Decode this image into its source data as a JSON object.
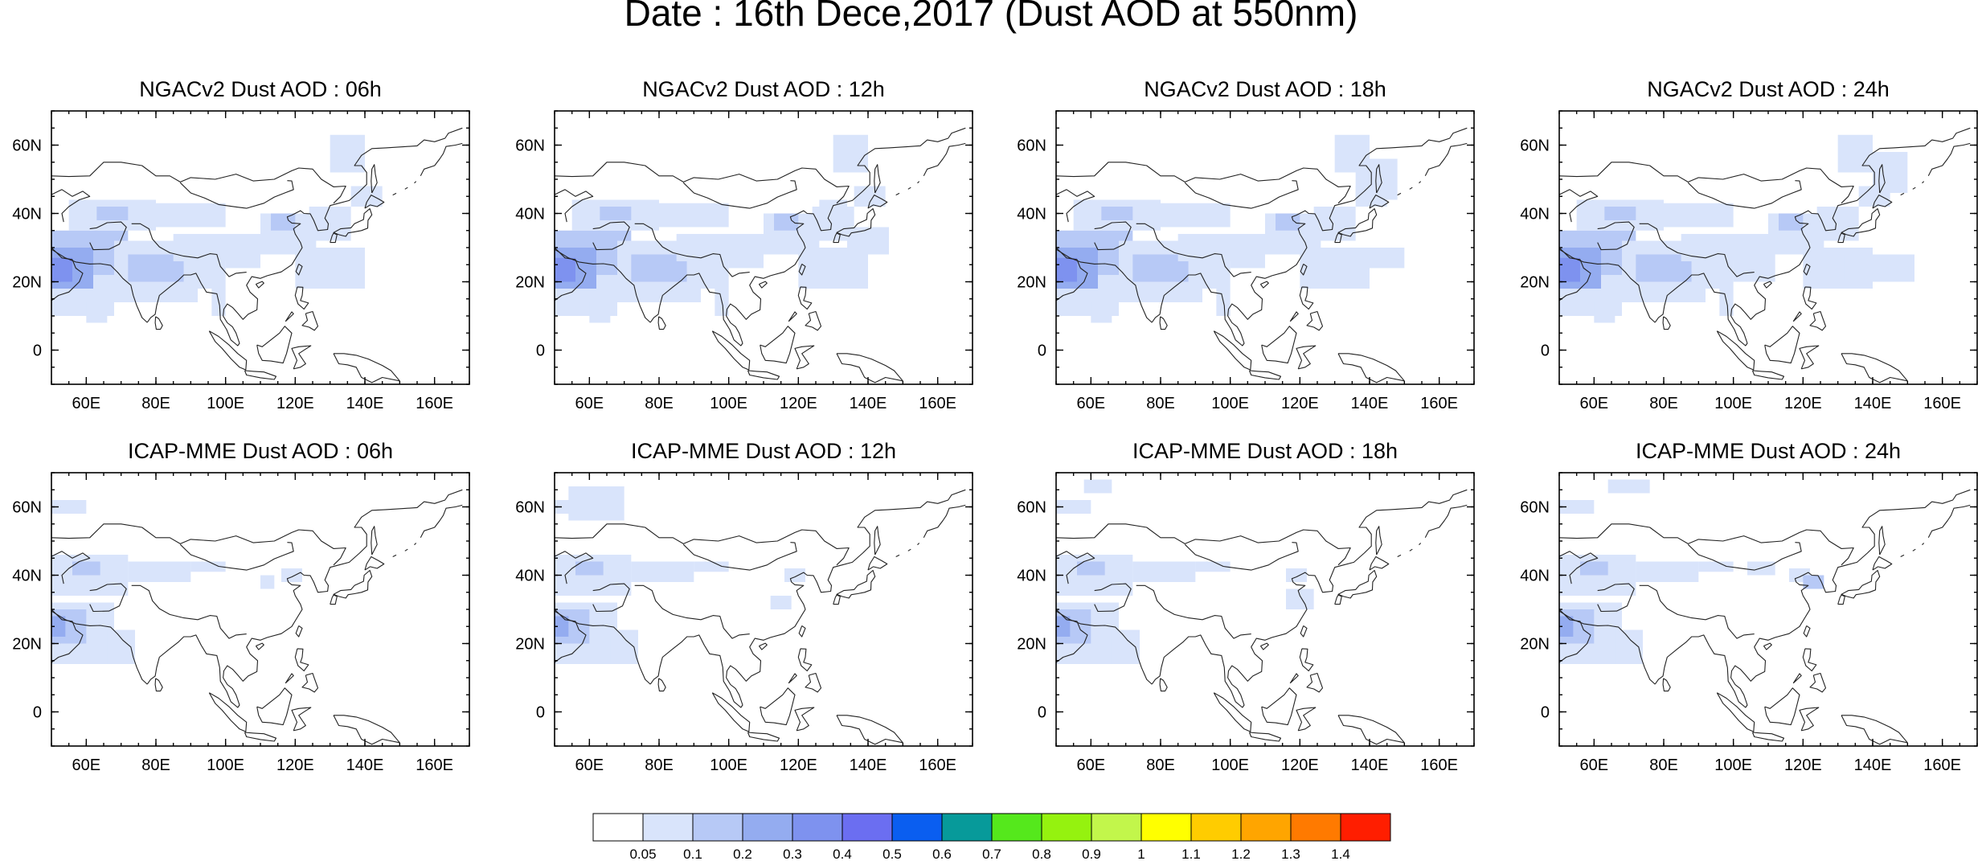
{
  "figure_title": "Date : 16th Dece,2017 (Dust AOD at 550nm)",
  "panels": [
    {
      "title": "NGACv2 Dust AOD : 06h",
      "model": "NGACv2",
      "lead": "06h"
    },
    {
      "title": "NGACv2 Dust AOD : 12h",
      "model": "NGACv2",
      "lead": "12h"
    },
    {
      "title": "NGACv2 Dust AOD : 18h",
      "model": "NGACv2",
      "lead": "18h"
    },
    {
      "title": "NGACv2 Dust AOD : 24h",
      "model": "NGACv2",
      "lead": "24h"
    },
    {
      "title": "ICAP-MME Dust AOD : 06h",
      "model": "ICAP-MME",
      "lead": "06h"
    },
    {
      "title": "ICAP-MME Dust AOD : 12h",
      "model": "ICAP-MME",
      "lead": "12h"
    },
    {
      "title": "ICAP-MME Dust AOD : 18h",
      "model": "ICAP-MME",
      "lead": "18h"
    },
    {
      "title": "ICAP-MME Dust AOD : 24h",
      "model": "ICAP-MME",
      "lead": "24h"
    }
  ],
  "map": {
    "lon_range": [
      50,
      170
    ],
    "lat_range": [
      -10,
      70
    ],
    "lon_ticks": [
      60,
      80,
      100,
      120,
      140,
      160
    ],
    "lon_tick_labels": [
      "60E",
      "80E",
      "100E",
      "120E",
      "140E",
      "160E"
    ],
    "lat_ticks": [
      0,
      20,
      40,
      60
    ],
    "lat_tick_labels": [
      "0",
      "20N",
      "40N",
      "60N"
    ]
  },
  "colorbar": {
    "colors": [
      "#ffffff",
      "#d9e4fb",
      "#b7c9f6",
      "#94acf0",
      "#7e92ef",
      "#6b6ef1",
      "#0a5ef0",
      "#079a9a",
      "#55e81c",
      "#95f20f",
      "#c2f64b",
      "#ffff00",
      "#ffcc00",
      "#ffa500",
      "#ff7a00",
      "#ff1e00"
    ],
    "labels": [
      "0.05",
      "0.1",
      "0.2",
      "0.3",
      "0.4",
      "0.5",
      "0.6",
      "0.7",
      "0.8",
      "0.9",
      "1",
      "1.1",
      "1.2",
      "1.3",
      "1.4"
    ]
  }
}
